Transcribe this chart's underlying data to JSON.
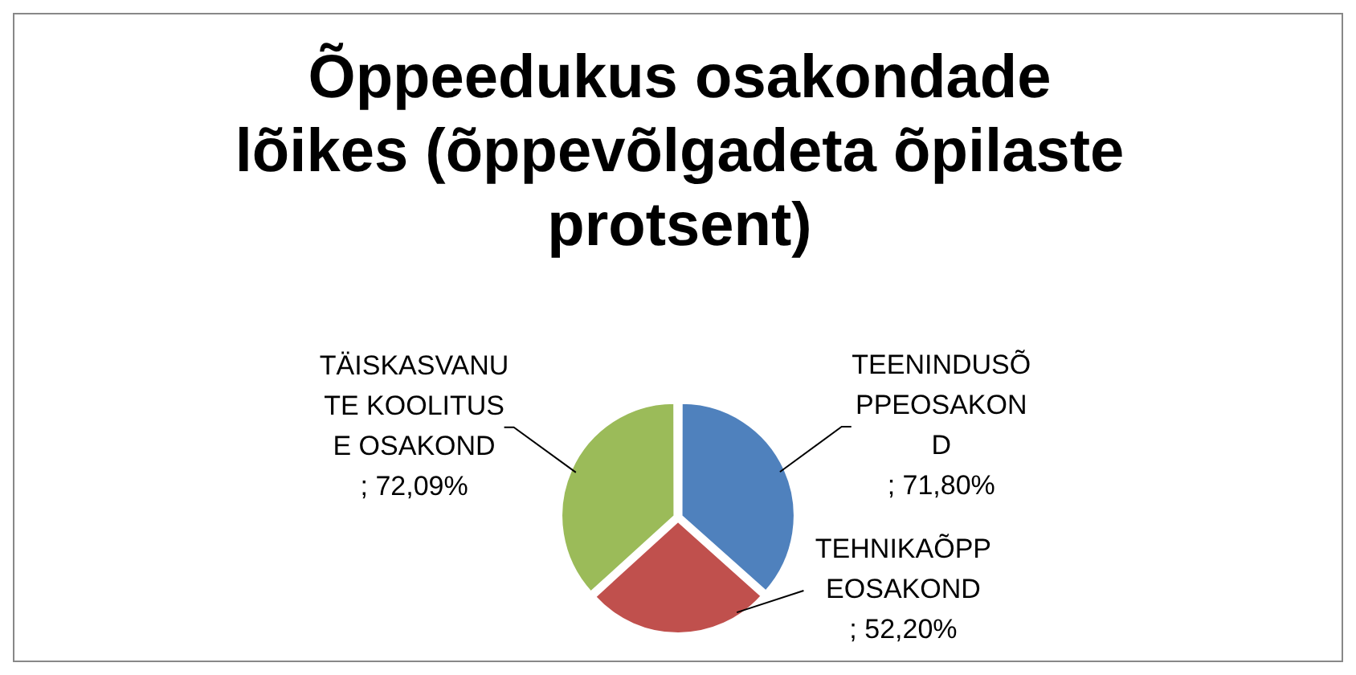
{
  "chart_data": {
    "type": "pie",
    "title": "Õppeedukus osakondade lõikes (õppevõlgadeta õpilaste protsent)",
    "categories": [
      "TEENINDUSÕPPEOSAKOND",
      "TEHNIKAÕPPEOSAKOND",
      "TÄISKASVANUTE KOOLITUSE OSAKOND"
    ],
    "values": [
      71.8,
      52.2,
      72.09
    ],
    "value_labels": [
      "; 71,80%",
      "; 52,20%",
      "; 72,09%"
    ],
    "colors": [
      "#4f81bd",
      "#c0504d",
      "#9bbb59"
    ],
    "legend": false
  }
}
